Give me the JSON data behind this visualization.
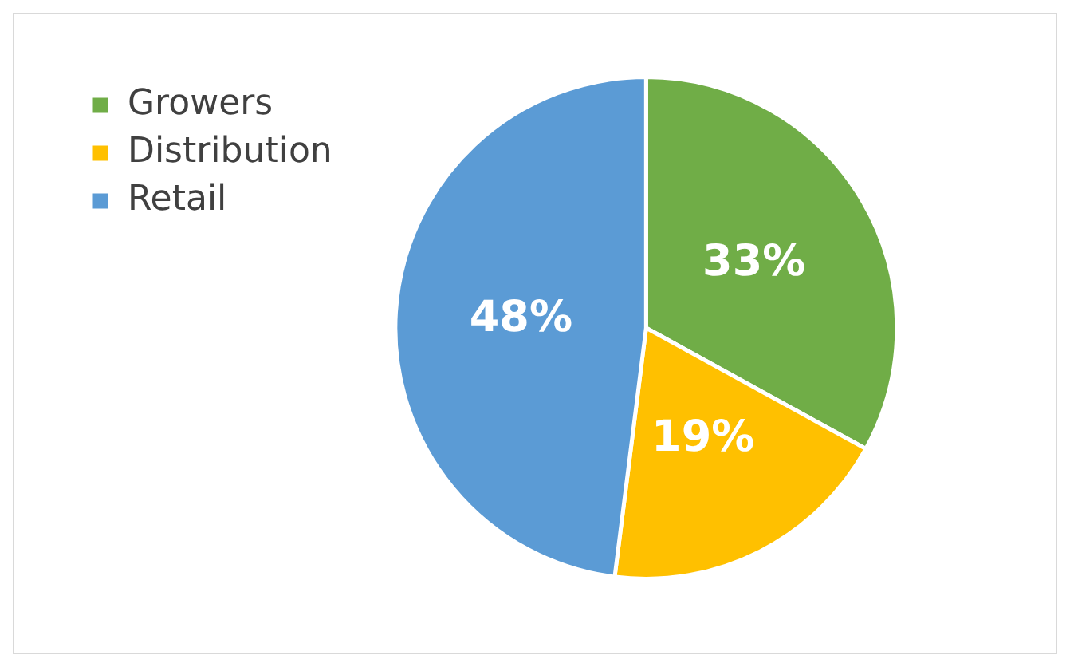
{
  "chart_data": {
    "type": "pie",
    "categories": [
      "Growers",
      "Distribution",
      "Retail"
    ],
    "values": [
      33,
      19,
      48
    ],
    "colors": [
      "#70ad47",
      "#ffc000",
      "#5b9bd5"
    ],
    "value_labels": [
      "33%",
      "19%",
      "48%"
    ],
    "legend": "top left"
  }
}
